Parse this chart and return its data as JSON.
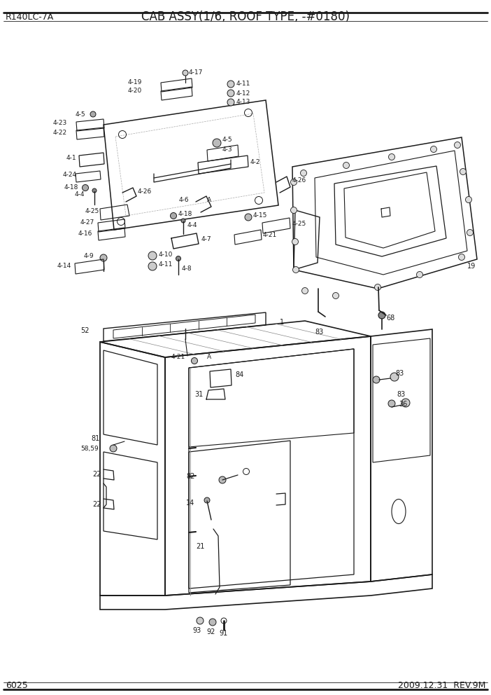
{
  "title": "CAB ASSY(1/6, ROOF TYPE, -#0180)",
  "model": "R140LC-7A",
  "page": "6025",
  "date": "2009.12.31  REV.9M",
  "bg_color": "#ffffff",
  "fig_width": 7.02,
  "fig_height": 9.92,
  "dpi": 100
}
